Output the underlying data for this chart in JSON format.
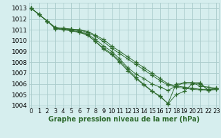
{
  "title": "Graphe pression niveau de la mer (hPa)",
  "x_hours": [
    0,
    1,
    2,
    3,
    4,
    5,
    6,
    7,
    8,
    9,
    10,
    11,
    12,
    13,
    14,
    15,
    16,
    17,
    18,
    19,
    20,
    21,
    22,
    23
  ],
  "line_smooth1": [
    1013.0,
    1012.4,
    1011.8,
    1011.2,
    1011.15,
    1011.05,
    1011.0,
    1010.85,
    1010.5,
    1010.1,
    1009.5,
    1009.0,
    1008.5,
    1008.0,
    1007.5,
    1007.0,
    1006.5,
    1006.0,
    1005.8,
    1005.7,
    1005.6,
    1005.5,
    1005.5,
    1005.6
  ],
  "line_smooth2": [
    1013.0,
    1012.4,
    1011.8,
    1011.2,
    1011.15,
    1011.05,
    1011.0,
    1010.75,
    1010.4,
    1009.9,
    1009.3,
    1008.8,
    1008.3,
    1007.8,
    1007.3,
    1006.8,
    1006.3,
    1005.9,
    1005.7,
    1005.6,
    1005.5,
    1005.45,
    1005.4,
    1005.5
  ],
  "line_mid": [
    1013.0,
    1012.4,
    1011.8,
    1011.2,
    1011.1,
    1011.0,
    1010.9,
    1010.6,
    1010.1,
    1009.5,
    1009.0,
    1008.3,
    1007.5,
    1006.9,
    1006.5,
    1006.0,
    1005.7,
    1005.4,
    1005.8,
    1006.1,
    1006.1,
    1005.8,
    1005.7,
    1005.6
  ],
  "line_jagged": [
    1013.0,
    1012.4,
    1011.8,
    1011.15,
    1011.05,
    1010.95,
    1010.8,
    1010.55,
    1009.9,
    1009.3,
    1008.8,
    1008.1,
    1007.35,
    1006.6,
    1005.95,
    1005.35,
    1004.8,
    1004.2,
    1006.0,
    1006.1,
    1006.1,
    1006.1,
    1005.4,
    1005.6
  ],
  "line_deep": [
    1013.0,
    1012.4,
    1011.8,
    1011.1,
    1011.0,
    1010.9,
    1010.75,
    1010.5,
    1009.9,
    1009.2,
    1008.7,
    1008.0,
    1007.2,
    1006.5,
    1005.9,
    1005.3,
    1004.9,
    1004.15,
    1005.0,
    1005.3,
    1006.0,
    1006.0,
    1005.4,
    1005.5
  ],
  "bg_color": "#d6eeee",
  "grid_color": "#aacccc",
  "line_color": "#2d6a2d",
  "marker": "+",
  "ylim_min": 1003.8,
  "ylim_max": 1013.5,
  "yticks": [
    1004,
    1005,
    1006,
    1007,
    1008,
    1009,
    1010,
    1011,
    1012,
    1013
  ],
  "label_fontsize": 6.5,
  "title_fontsize": 7.0
}
